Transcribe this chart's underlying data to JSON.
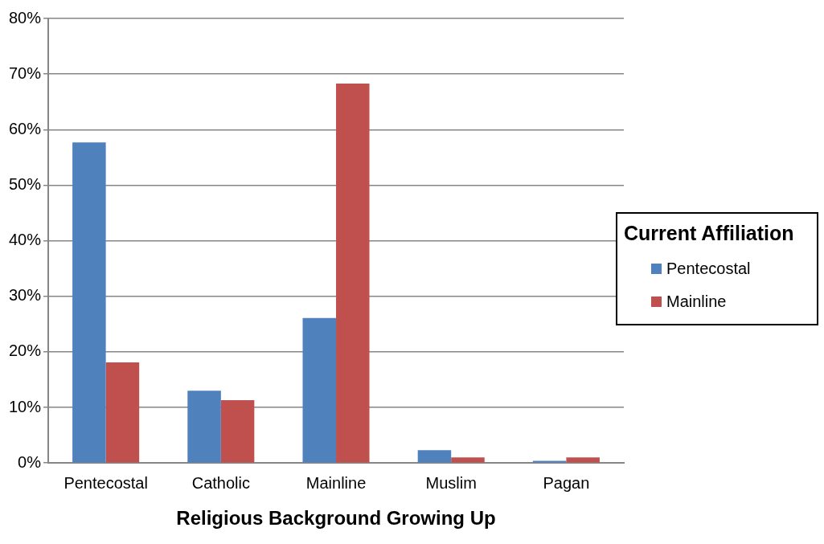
{
  "chart_data": {
    "type": "bar",
    "xlabel": "Religious Background Growing Up",
    "legend_title": "Current Affiliation",
    "categories": [
      "Pentecostal",
      "Catholic",
      "Mainline",
      "Muslim",
      "Pagan"
    ],
    "series": [
      {
        "name": "Pentecostal",
        "color": "#4f81bd",
        "values": [
          57.7,
          13.0,
          26.1,
          2.3,
          0.4
        ]
      },
      {
        "name": "Mainline",
        "color": "#c0504d",
        "values": [
          18.1,
          11.3,
          68.3,
          1.0,
          1.0
        ]
      }
    ],
    "ylim": [
      0,
      80
    ],
    "yticks": [
      {
        "value": 0,
        "label": "0%"
      },
      {
        "value": 10,
        "label": "10%"
      },
      {
        "value": 20,
        "label": "20%"
      },
      {
        "value": 30,
        "label": "30%"
      },
      {
        "value": 40,
        "label": "40%"
      },
      {
        "value": 50,
        "label": "50%"
      },
      {
        "value": 60,
        "label": "60%"
      },
      {
        "value": 70,
        "label": "70%"
      },
      {
        "value": 80,
        "label": "80%"
      }
    ],
    "grid": "y",
    "legend": "right"
  }
}
